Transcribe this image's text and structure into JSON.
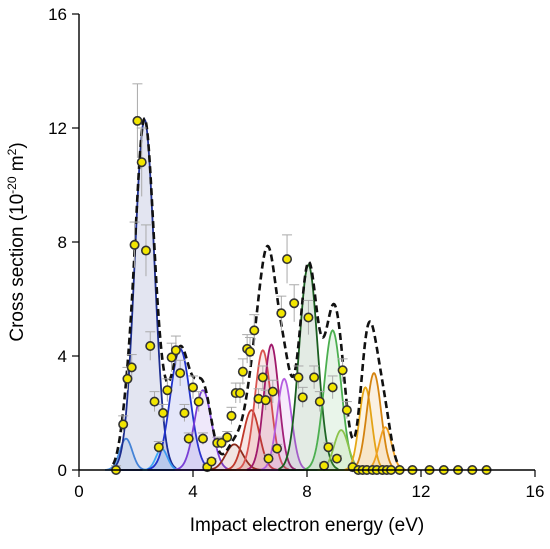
{
  "chart_data": {
    "type": "scatter",
    "xlabel": "Impact electron energy (eV)",
    "ylabel_main": "Cross section (10",
    "ylabel_exp": "-20",
    "ylabel_unit": " m",
    "ylabel_unit_exp": "2",
    "ylabel_close": ")",
    "xlim": [
      0,
      16
    ],
    "ylim": [
      0,
      16
    ],
    "xticks": [
      "0",
      "4",
      "8",
      "12",
      "16"
    ],
    "yticks": [
      "0",
      "4",
      "8",
      "12",
      "16"
    ],
    "xtick_values": [
      0,
      4,
      8,
      12,
      16
    ],
    "ytick_values": [
      0,
      4,
      8,
      12,
      16
    ],
    "grid": false,
    "legend": "none",
    "measured_points": {
      "marker_fill": "#f2e600",
      "marker_edge": "#333333",
      "errorbar_color": "#aaaaaa",
      "x": [
        1.3,
        1.55,
        1.7,
        1.85,
        1.95,
        2.05,
        2.2,
        2.35,
        2.5,
        2.65,
        2.8,
        2.95,
        3.1,
        3.25,
        3.4,
        3.55,
        3.7,
        3.85,
        4.0,
        4.2,
        4.35,
        4.5,
        4.65,
        4.85,
        5.0,
        5.2,
        5.35,
        5.5,
        5.65,
        5.75,
        5.9,
        6.0,
        6.15,
        6.3,
        6.45,
        6.55,
        6.65,
        6.8,
        6.95,
        7.1,
        7.3,
        7.55,
        7.7,
        7.85,
        8.05,
        8.25,
        8.45,
        8.6,
        8.75,
        8.9,
        9.05,
        9.25,
        9.4,
        9.6,
        9.8,
        9.95,
        10.1,
        10.3,
        10.45,
        10.65,
        10.8,
        10.95,
        11.25,
        11.7,
        12.3,
        12.8,
        13.3,
        13.8,
        14.3
      ],
      "y": [
        0.0,
        1.6,
        3.2,
        3.6,
        7.9,
        12.25,
        10.8,
        7.7,
        4.35,
        2.4,
        0.8,
        2.0,
        2.8,
        3.95,
        4.2,
        3.4,
        2.0,
        1.1,
        2.9,
        2.4,
        1.1,
        0.1,
        0.3,
        0.95,
        0.95,
        1.15,
        1.9,
        2.7,
        2.7,
        3.45,
        4.25,
        4.15,
        4.9,
        2.5,
        3.25,
        2.45,
        0.4,
        2.75,
        0.75,
        5.5,
        7.4,
        5.85,
        3.25,
        2.55,
        5.35,
        3.25,
        2.4,
        0.15,
        0.8,
        2.9,
        0.4,
        3.5,
        2.1,
        0.1,
        0.0,
        0.0,
        0.0,
        0.0,
        0.0,
        0.0,
        0.0,
        0.0,
        0.0,
        0.0,
        0.0,
        0.0,
        0.0,
        0.0,
        0.0
      ],
      "yerr": [
        0.15,
        0.3,
        0.4,
        0.45,
        0.8,
        1.3,
        1.2,
        0.9,
        0.5,
        0.35,
        0.2,
        0.3,
        0.4,
        0.5,
        0.5,
        0.45,
        0.3,
        0.2,
        0.4,
        0.35,
        0.2,
        0.1,
        0.1,
        0.2,
        0.2,
        0.2,
        0.3,
        0.35,
        0.35,
        0.45,
        0.5,
        0.5,
        0.55,
        0.35,
        0.4,
        0.35,
        0.15,
        0.4,
        0.15,
        0.6,
        0.85,
        0.65,
        0.4,
        0.35,
        0.6,
        0.4,
        0.35,
        0.1,
        0.15,
        0.4,
        0.1,
        0.4,
        0.3,
        0.05,
        0.05,
        0.05,
        0.05,
        0.05,
        0.05,
        0.05,
        0.05,
        0.05,
        0.05,
        0.05,
        0.05,
        0.05,
        0.05,
        0.05,
        0.05
      ]
    },
    "fitted_peaks": [
      {
        "center": 1.65,
        "amp": 1.1,
        "width": 0.22,
        "color": "#4a90e2"
      },
      {
        "center": 2.3,
        "amp": 12.3,
        "width": 0.34,
        "color": "#1c2d8f"
      },
      {
        "center": 2.9,
        "amp": 0.75,
        "width": 0.2,
        "color": "#3fa9f5"
      },
      {
        "center": 3.55,
        "amp": 4.25,
        "width": 0.35,
        "color": "#2233cc"
      },
      {
        "center": 4.35,
        "amp": 2.8,
        "width": 0.3,
        "color": "#7a3fd6"
      },
      {
        "center": 5.45,
        "amp": 0.9,
        "width": 0.3,
        "color": "#8b2a1a"
      },
      {
        "center": 6.05,
        "amp": 2.1,
        "width": 0.28,
        "color": "#c0392b"
      },
      {
        "center": 6.45,
        "amp": 4.2,
        "width": 0.28,
        "color": "#d9534f"
      },
      {
        "center": 6.75,
        "amp": 4.4,
        "width": 0.26,
        "color": "#a0196b"
      },
      {
        "center": 7.2,
        "amp": 3.2,
        "width": 0.25,
        "color": "#b55de0"
      },
      {
        "center": 8.05,
        "amp": 7.2,
        "width": 0.32,
        "color": "#1a5e20"
      },
      {
        "center": 8.9,
        "amp": 4.9,
        "width": 0.3,
        "color": "#4caf50"
      },
      {
        "center": 9.2,
        "amp": 1.4,
        "width": 0.25,
        "color": "#8bc34a"
      },
      {
        "center": 10.05,
        "amp": 2.9,
        "width": 0.22,
        "color": "#e6a817"
      },
      {
        "center": 10.35,
        "amp": 3.4,
        "width": 0.25,
        "color": "#d4830f"
      },
      {
        "center": 10.75,
        "amp": 1.5,
        "width": 0.22,
        "color": "#f0a020"
      }
    ],
    "envelope": {
      "color": "#111111",
      "style": "dashed"
    }
  }
}
